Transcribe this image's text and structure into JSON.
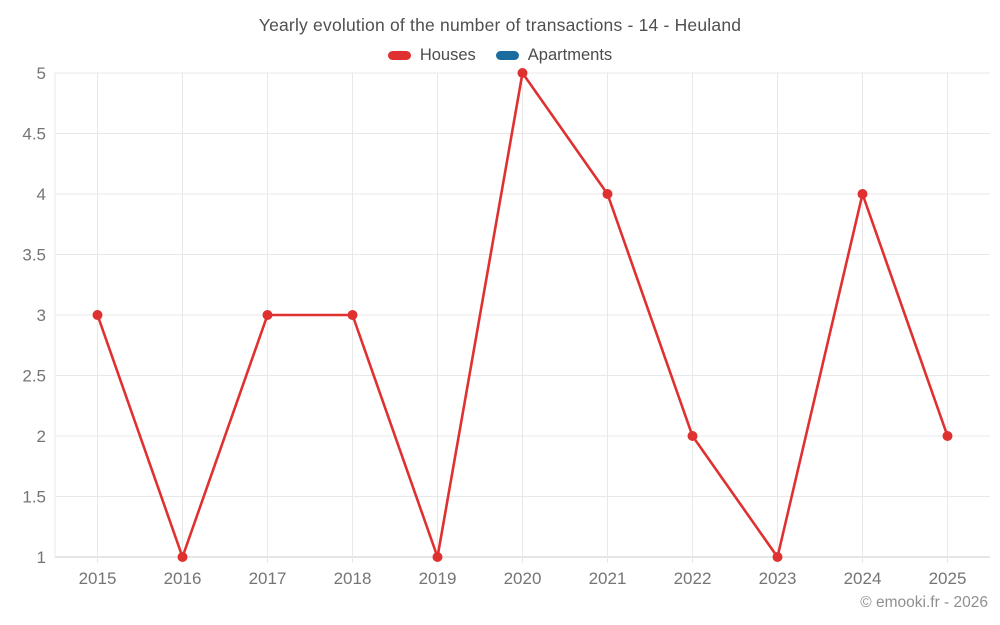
{
  "title": "Yearly evolution of the number of transactions - 14 - Heuland",
  "watermark": "© emooki.fr - 2026",
  "colors": {
    "houses": "#e03131",
    "apartments": "#1a6d9e",
    "gridline": "#e8e8e8",
    "axis": "#cdcdcd",
    "tick_text": "#757575",
    "title_text": "#4f4f4f",
    "legend_text": "#4c4c4c",
    "watermark_text": "#8f8f8f",
    "background": "#ffffff"
  },
  "legend": {
    "items": [
      {
        "label": "Houses",
        "color": "#e03131"
      },
      {
        "label": "Apartments",
        "color": "#1a6d9e"
      }
    ]
  },
  "chart_data": {
    "type": "line",
    "title": "Yearly evolution of the number of transactions - 14 - Heuland",
    "categories": [
      "2015",
      "2016",
      "2017",
      "2018",
      "2019",
      "2020",
      "2021",
      "2022",
      "2023",
      "2024",
      "2025"
    ],
    "series": [
      {
        "name": "Houses",
        "color": "#e03131",
        "values": [
          3,
          1,
          3,
          3,
          1,
          5,
          4,
          2,
          1,
          4,
          2
        ]
      },
      {
        "name": "Apartments",
        "color": "#1a6d9e",
        "values": []
      }
    ],
    "xlabel": "",
    "ylabel": "",
    "ylim": [
      1,
      5
    ],
    "y_ticks": [
      1,
      1.5,
      2,
      2.5,
      3,
      3.5,
      4,
      4.5,
      5
    ],
    "grid": true,
    "legend_position": "top",
    "marker_radius": 5
  }
}
